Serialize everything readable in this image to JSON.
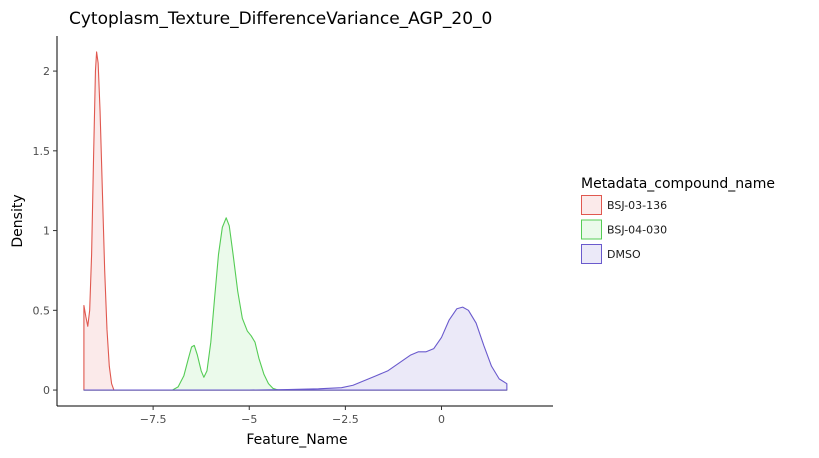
{
  "chart_data": {
    "type": "area",
    "title": "Cytoplasm_Texture_DifferenceVariance_AGP_20_0",
    "xlabel": "Feature_Name",
    "ylabel": "Density",
    "xlim": [
      -10.0,
      2.9
    ],
    "ylim": [
      -0.1,
      2.22
    ],
    "x_ticks": [
      {
        "value": -7.5,
        "label": "−7.5"
      },
      {
        "value": -5,
        "label": "−5"
      },
      {
        "value": -2.5,
        "label": "−2.5"
      },
      {
        "value": 0,
        "label": "0"
      }
    ],
    "y_ticks": [
      {
        "value": 0,
        "label": "0"
      },
      {
        "value": 0.5,
        "label": "0.5"
      },
      {
        "value": 1,
        "label": "1"
      },
      {
        "value": 1.5,
        "label": "1.5"
      },
      {
        "value": 2,
        "label": "2"
      }
    ],
    "grid": false,
    "legend": {
      "title": "Metadata_compound_name",
      "position": "right"
    },
    "series": [
      {
        "name": "BSJ-03-136",
        "line_color": "#e0584f",
        "fill_color": "#fbeaea",
        "points": [
          [
            -9.3,
            0.0
          ],
          [
            -9.3,
            0.53
          ],
          [
            -9.25,
            0.46
          ],
          [
            -9.2,
            0.4
          ],
          [
            -9.15,
            0.5
          ],
          [
            -9.1,
            0.85
          ],
          [
            -9.05,
            1.45
          ],
          [
            -9.0,
            2.0
          ],
          [
            -8.97,
            2.12
          ],
          [
            -8.93,
            2.05
          ],
          [
            -8.88,
            1.75
          ],
          [
            -8.82,
            1.25
          ],
          [
            -8.76,
            0.75
          ],
          [
            -8.7,
            0.38
          ],
          [
            -8.64,
            0.15
          ],
          [
            -8.58,
            0.04
          ],
          [
            -8.52,
            0.0
          ],
          [
            1.7,
            0.0
          ]
        ]
      },
      {
        "name": "BSJ-04-030",
        "line_color": "#55cc55",
        "fill_color": "#ebfaeb",
        "points": [
          [
            -9.3,
            0.0
          ],
          [
            -7.0,
            0.0
          ],
          [
            -6.85,
            0.02
          ],
          [
            -6.7,
            0.09
          ],
          [
            -6.58,
            0.2
          ],
          [
            -6.5,
            0.27
          ],
          [
            -6.43,
            0.28
          ],
          [
            -6.35,
            0.22
          ],
          [
            -6.25,
            0.12
          ],
          [
            -6.18,
            0.08
          ],
          [
            -6.1,
            0.12
          ],
          [
            -6.0,
            0.3
          ],
          [
            -5.9,
            0.58
          ],
          [
            -5.8,
            0.85
          ],
          [
            -5.7,
            1.02
          ],
          [
            -5.6,
            1.08
          ],
          [
            -5.52,
            1.03
          ],
          [
            -5.42,
            0.85
          ],
          [
            -5.3,
            0.62
          ],
          [
            -5.18,
            0.45
          ],
          [
            -5.05,
            0.37
          ],
          [
            -4.95,
            0.34
          ],
          [
            -4.85,
            0.3
          ],
          [
            -4.75,
            0.2
          ],
          [
            -4.62,
            0.1
          ],
          [
            -4.5,
            0.04
          ],
          [
            -4.38,
            0.01
          ],
          [
            -4.25,
            0.0
          ],
          [
            1.7,
            0.0
          ]
        ]
      },
      {
        "name": "DMSO",
        "line_color": "#6a5acd",
        "fill_color": "#ebe9f8",
        "points": [
          [
            -9.3,
            0.0
          ],
          [
            -5.0,
            0.0
          ],
          [
            -4.0,
            0.003
          ],
          [
            -3.2,
            0.008
          ],
          [
            -2.6,
            0.015
          ],
          [
            -2.3,
            0.03
          ],
          [
            -2.0,
            0.06
          ],
          [
            -1.7,
            0.09
          ],
          [
            -1.4,
            0.12
          ],
          [
            -1.1,
            0.17
          ],
          [
            -0.8,
            0.22
          ],
          [
            -0.6,
            0.24
          ],
          [
            -0.4,
            0.24
          ],
          [
            -0.2,
            0.26
          ],
          [
            0.0,
            0.33
          ],
          [
            0.2,
            0.44
          ],
          [
            0.4,
            0.51
          ],
          [
            0.55,
            0.52
          ],
          [
            0.7,
            0.5
          ],
          [
            0.9,
            0.42
          ],
          [
            1.1,
            0.28
          ],
          [
            1.3,
            0.15
          ],
          [
            1.5,
            0.07
          ],
          [
            1.7,
            0.04
          ],
          [
            1.7,
            0.0
          ]
        ]
      }
    ]
  }
}
